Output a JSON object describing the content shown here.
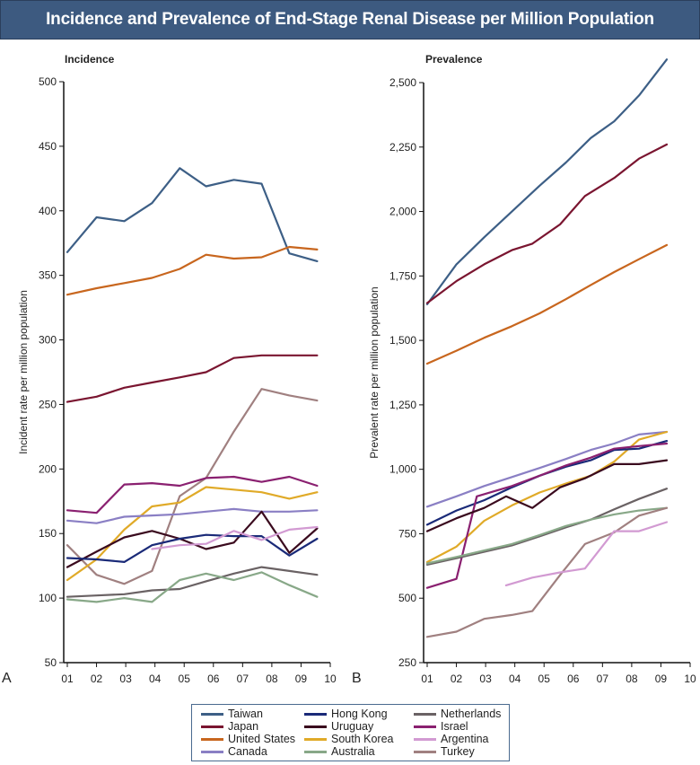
{
  "title": "Incidence and Prevalence of End-Stage Renal Disease per Million Population",
  "legend": {
    "items": [
      {
        "name": "Taiwan",
        "color": "#3d5f86"
      },
      {
        "name": "Japan",
        "color": "#7a1530"
      },
      {
        "name": "United States",
        "color": "#c8661e"
      },
      {
        "name": "Canada",
        "color": "#8a7fc4"
      },
      {
        "name": "Hong Kong",
        "color": "#1a2a78"
      },
      {
        "name": "Uruguay",
        "color": "#3a0a1e"
      },
      {
        "name": "South Korea",
        "color": "#e0aa28"
      },
      {
        "name": "Australia",
        "color": "#88a888"
      },
      {
        "name": "Netherlands",
        "color": "#6a6264"
      },
      {
        "name": "Israel",
        "color": "#8a2070"
      },
      {
        "name": "Argentina",
        "color": "#d29ad2"
      },
      {
        "name": "Turkey",
        "color": "#a08080"
      }
    ]
  },
  "chart_data": [
    {
      "type": "line",
      "panel_letter": "A",
      "title": "Incidence",
      "xlabel": "",
      "ylabel": "Incident rate per million population",
      "ylim": [
        50,
        500
      ],
      "yticks": [
        50,
        100,
        150,
        200,
        250,
        300,
        350,
        400,
        450,
        500
      ],
      "ytick_labels": [
        "50",
        "100",
        "150",
        "200",
        "250",
        "300",
        "350",
        "400",
        "450",
        "500"
      ],
      "xlim": [
        1,
        10
      ],
      "xticks": [
        1,
        2,
        3,
        4,
        5,
        6,
        7,
        8,
        9,
        10
      ],
      "xtick_labels": [
        "01",
        "02",
        "03",
        "04",
        "05",
        "06",
        "07",
        "08",
        "09",
        "10"
      ],
      "grid": false,
      "legend_position": "bottom",
      "series": [
        {
          "name": "Taiwan",
          "x": [
            1.0,
            2.0,
            2.95,
            3.9,
            4.85,
            5.75,
            6.7,
            7.65,
            8.6,
            9.55
          ],
          "y": [
            368,
            395,
            392,
            406,
            433,
            419,
            424,
            421,
            367,
            361
          ]
        },
        {
          "name": "United States",
          "x": [
            1.0,
            2.0,
            2.95,
            3.9,
            4.85,
            5.75,
            6.7,
            7.65,
            8.6,
            9.55
          ],
          "y": [
            335,
            340,
            344,
            348,
            355,
            366,
            363,
            364,
            372,
            370
          ]
        },
        {
          "name": "Japan",
          "x": [
            1.0,
            2.0,
            2.95,
            3.9,
            4.85,
            5.75,
            6.7,
            7.65,
            8.6,
            9.55
          ],
          "y": [
            252,
            256,
            263,
            267,
            271,
            275,
            286,
            288,
            288,
            288
          ]
        },
        {
          "name": "Turkey",
          "x": [
            1.0,
            2.0,
            2.95,
            3.9,
            4.85,
            5.75,
            6.7,
            7.65,
            8.6,
            9.55
          ],
          "y": [
            141,
            118,
            111,
            121,
            179,
            193,
            229,
            262,
            257,
            253
          ]
        },
        {
          "name": "Israel",
          "x": [
            1.0,
            2.0,
            2.95,
            3.9,
            4.85,
            5.75,
            6.7,
            7.65,
            8.6,
            9.55
          ],
          "y": [
            168,
            166,
            188,
            189,
            187,
            193,
            194,
            190,
            194,
            187
          ]
        },
        {
          "name": "South Korea",
          "x": [
            1.0,
            2.0,
            2.95,
            3.9,
            4.85,
            5.75,
            6.7,
            7.65,
            8.6,
            9.55
          ],
          "y": [
            114,
            130,
            153,
            171,
            174,
            186,
            184,
            182,
            177,
            182
          ]
        },
        {
          "name": "Canada",
          "x": [
            1.0,
            2.0,
            2.95,
            3.9,
            4.85,
            5.75,
            6.7,
            7.65,
            8.6,
            9.55
          ],
          "y": [
            160,
            158,
            163,
            164,
            165,
            167,
            169,
            167,
            167,
            168
          ]
        },
        {
          "name": "Uruguay",
          "x": [
            1.0,
            2.0,
            2.95,
            3.9,
            4.85,
            5.75,
            6.7,
            7.65,
            8.6,
            9.55
          ],
          "y": [
            124,
            136,
            147,
            152,
            146,
            138,
            143,
            167,
            135,
            154
          ]
        },
        {
          "name": "Hong Kong",
          "x": [
            1.0,
            2.0,
            2.95,
            3.9,
            4.85,
            5.75,
            6.7,
            7.65,
            8.6,
            9.55
          ],
          "y": [
            131,
            130,
            128,
            141,
            146,
            149,
            148,
            148,
            133,
            146
          ]
        },
        {
          "name": "Argentina",
          "x": [
            3.9,
            4.85,
            5.75,
            6.7,
            7.65,
            8.6,
            9.55
          ],
          "y": [
            138,
            141,
            142,
            152,
            145,
            153,
            155
          ]
        },
        {
          "name": "Netherlands",
          "x": [
            1.0,
            2.0,
            2.95,
            3.9,
            4.85,
            5.75,
            6.7,
            7.65,
            8.6,
            9.55
          ],
          "y": [
            101,
            102,
            103,
            106,
            107,
            113,
            119,
            124,
            121,
            118
          ]
        },
        {
          "name": "Australia",
          "x": [
            1.0,
            2.0,
            2.95,
            3.9,
            4.85,
            5.75,
            6.7,
            7.65,
            8.6,
            9.55
          ],
          "y": [
            99,
            97,
            100,
            97,
            114,
            119,
            114,
            120,
            110,
            101
          ]
        }
      ]
    },
    {
      "type": "line",
      "panel_letter": "B",
      "title": "Prevalence",
      "xlabel": "",
      "ylabel": "Prevalent rate per million population",
      "ylim": [
        250,
        2500
      ],
      "yticks": [
        250,
        500,
        750,
        1000,
        1250,
        1500,
        1750,
        2000,
        2250,
        2500
      ],
      "ytick_labels": [
        "250",
        "500",
        "750",
        "1,000",
        "1,250",
        "1,500",
        "1,750",
        "2,000",
        "2,250",
        "2,500"
      ],
      "xlim": [
        1,
        10
      ],
      "xticks": [
        1,
        2,
        3,
        4,
        5,
        6,
        7,
        8,
        9,
        10
      ],
      "xtick_labels": [
        "01",
        "02",
        "03",
        "04",
        "05",
        "06",
        "07",
        "08",
        "09",
        "10"
      ],
      "grid": false,
      "legend_position": "bottom",
      "series": [
        {
          "name": "Taiwan",
          "x": [
            1.0,
            2.0,
            2.95,
            3.9,
            4.85,
            5.75,
            6.6,
            7.4,
            8.25,
            9.2
          ],
          "y": [
            1640,
            1795,
            1900,
            2000,
            2100,
            2190,
            2285,
            2350,
            2450,
            2590
          ]
        },
        {
          "name": "Japan",
          "x": [
            1.0,
            2.0,
            2.95,
            3.9,
            4.6,
            5.55,
            6.4,
            7.4,
            8.25,
            9.2
          ],
          "y": [
            1645,
            1730,
            1795,
            1850,
            1875,
            1950,
            2060,
            2130,
            2205,
            2260
          ]
        },
        {
          "name": "United States",
          "x": [
            1.0,
            2.0,
            2.95,
            3.9,
            4.85,
            5.75,
            6.6,
            7.4,
            8.25,
            9.2
          ],
          "y": [
            1410,
            1460,
            1510,
            1555,
            1605,
            1660,
            1715,
            1765,
            1815,
            1870
          ]
        },
        {
          "name": "Canada",
          "x": [
            1.0,
            2.0,
            2.95,
            3.9,
            4.85,
            5.75,
            6.6,
            7.4,
            8.25,
            9.2
          ],
          "y": [
            855,
            895,
            935,
            970,
            1005,
            1040,
            1075,
            1100,
            1135,
            1145
          ]
        },
        {
          "name": "South Korea",
          "x": [
            1.0,
            2.0,
            2.95,
            3.9,
            4.85,
            5.75,
            6.6,
            7.4,
            8.25,
            9.2
          ],
          "y": [
            640,
            700,
            800,
            860,
            910,
            945,
            975,
            1030,
            1115,
            1145
          ]
        },
        {
          "name": "Hong Kong",
          "x": [
            1.0,
            2.0,
            2.95,
            3.9,
            4.85,
            5.75,
            6.6,
            7.4,
            8.25,
            9.2
          ],
          "y": [
            785,
            840,
            880,
            930,
            975,
            1010,
            1035,
            1075,
            1080,
            1110
          ]
        },
        {
          "name": "Israel",
          "x": [
            1.0,
            2.0,
            2.7,
            3.9,
            4.85,
            5.75,
            6.6,
            7.4,
            8.25,
            9.2
          ],
          "y": [
            540,
            575,
            895,
            935,
            975,
            1015,
            1045,
            1080,
            1090,
            1100
          ]
        },
        {
          "name": "Uruguay",
          "x": [
            1.0,
            2.0,
            2.95,
            3.7,
            4.6,
            5.55,
            6.4,
            7.4,
            8.25,
            9.2
          ],
          "y": [
            760,
            810,
            850,
            895,
            850,
            930,
            965,
            1020,
            1020,
            1035
          ]
        },
        {
          "name": "Netherlands",
          "x": [
            1.0,
            2.0,
            2.95,
            3.9,
            4.85,
            5.75,
            6.6,
            7.4,
            8.25,
            9.2
          ],
          "y": [
            630,
            655,
            680,
            705,
            740,
            775,
            805,
            845,
            885,
            925
          ]
        },
        {
          "name": "Australia",
          "x": [
            1.0,
            2.0,
            2.95,
            3.9,
            4.85,
            5.75,
            6.6,
            7.4,
            8.25,
            9.2
          ],
          "y": [
            635,
            660,
            685,
            710,
            745,
            780,
            805,
            825,
            840,
            850
          ]
        },
        {
          "name": "Turkey",
          "x": [
            1.0,
            2.0,
            2.95,
            3.9,
            4.6,
            5.55,
            6.4,
            7.4,
            8.25,
            9.2
          ],
          "y": [
            350,
            370,
            420,
            435,
            450,
            590,
            710,
            755,
            820,
            850
          ]
        },
        {
          "name": "Argentina",
          "x": [
            3.7,
            4.6,
            5.55,
            6.4,
            7.4,
            8.25,
            9.2
          ],
          "y": [
            550,
            580,
            600,
            615,
            760,
            760,
            795
          ]
        }
      ]
    }
  ]
}
